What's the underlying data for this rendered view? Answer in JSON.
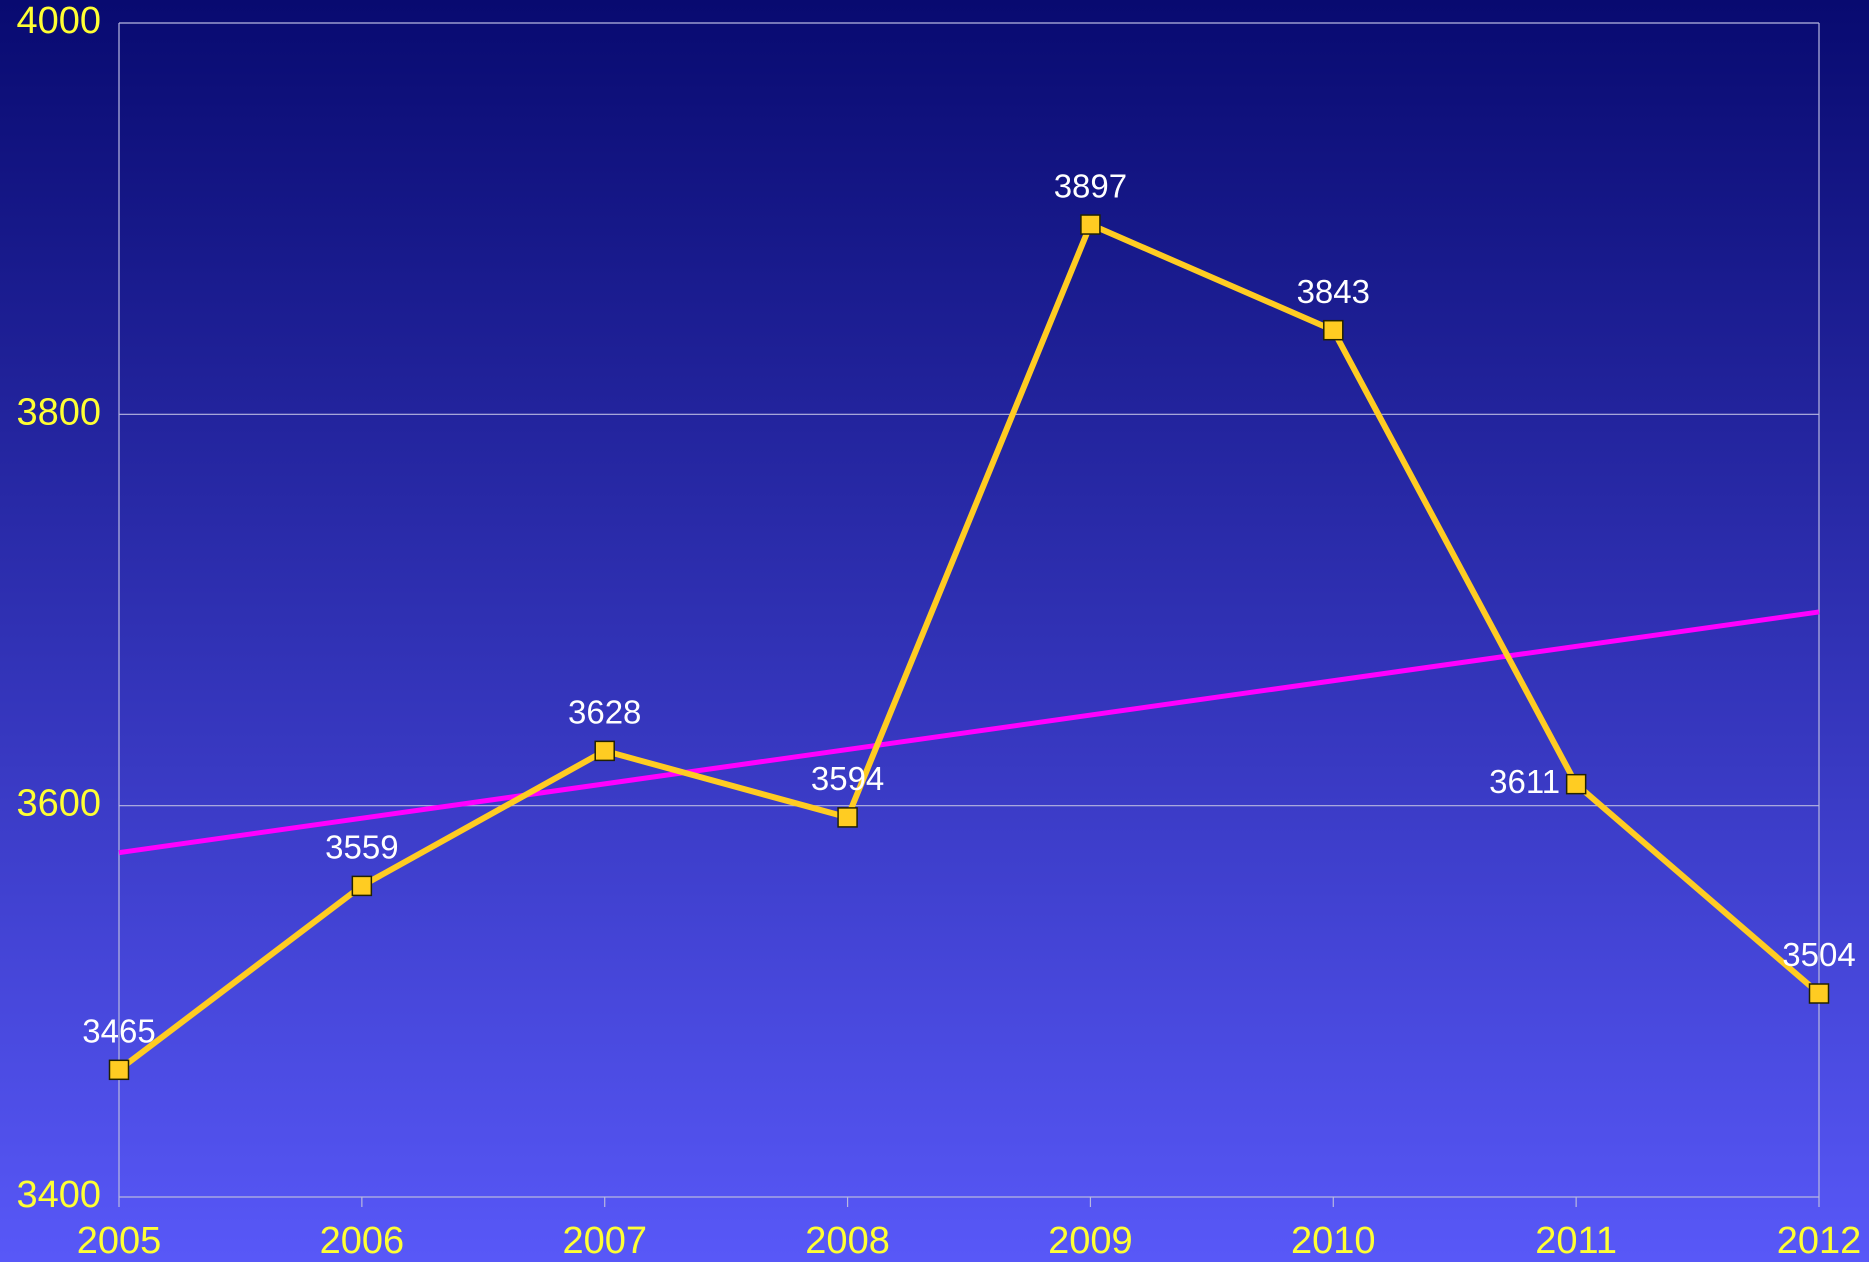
{
  "chart_data": {
    "type": "line",
    "categories": [
      "2005",
      "2006",
      "2007",
      "2008",
      "2009",
      "2010",
      "2011",
      "2012"
    ],
    "series": [
      {
        "color": "#ffcc22",
        "values": [
          3465,
          3559,
          3628,
          3594,
          3897,
          3843,
          3611,
          3504
        ]
      }
    ],
    "trend": {
      "color": "#ff00ff",
      "start": 3576,
      "end": 3699
    },
    "ylim": [
      3400,
      4000
    ],
    "yticks": [
      3400,
      3600,
      3800,
      4000
    ],
    "grid": true
  }
}
